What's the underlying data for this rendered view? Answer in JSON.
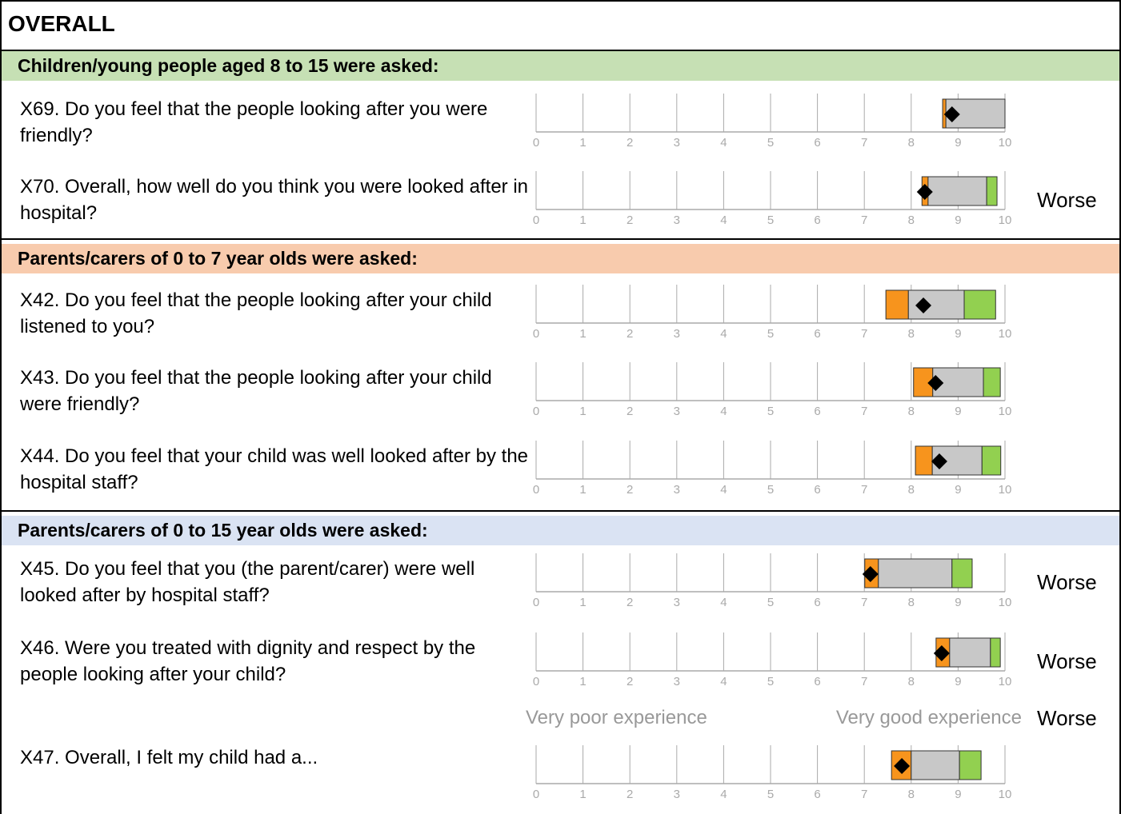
{
  "title": "OVERALL",
  "axis": {
    "xlim": [
      0,
      10
    ],
    "xticks": [
      0,
      1,
      2,
      3,
      4,
      5,
      6,
      7,
      8,
      9,
      10
    ],
    "low_label": "Very poor experience",
    "high_label": "Very good experience",
    "colors": [
      "#f7941d",
      "#c8c8c8",
      "#92d050"
    ]
  },
  "sections": [
    {
      "heading": "Children/young people aged 8 to 15 were asked:",
      "color": "#c6e0b4",
      "items": [
        {
          "question": "X69. Do you feel that the people looking after you were friendly?",
          "score": 8.87,
          "thresholds": [
            8.67,
            8.74,
            10.0,
            10.0
          ]
        },
        {
          "question": "X70. Overall, how well do you think you were looked after in hospital?",
          "score": 8.29,
          "thresholds": [
            8.23,
            8.36,
            9.61,
            9.83
          ],
          "result": "Worse"
        }
      ]
    },
    {
      "heading": "Parents/carers of 0 to 7 year olds were asked:",
      "color": "#f8cbad",
      "items": [
        {
          "question": "X42. Do you feel that the people looking after your child listened to you?",
          "score": 8.26,
          "thresholds": [
            7.46,
            7.94,
            9.13,
            9.8
          ]
        },
        {
          "question": "X43. Do you feel that the people looking after your child were friendly?",
          "score": 8.52,
          "thresholds": [
            8.05,
            8.46,
            9.54,
            9.9
          ]
        },
        {
          "question": "X44. Do you feel that your child was well looked after by the hospital staff?",
          "score": 8.6,
          "thresholds": [
            8.09,
            8.45,
            9.51,
            9.91
          ]
        }
      ]
    },
    {
      "heading": "Parents/carers of 0 to 15 year olds were asked:",
      "color": "#dae3f3",
      "items": [
        {
          "question": "X45. Do you feel that you (the parent/carer) were well looked after by hospital staff?",
          "score": 7.13,
          "thresholds": [
            7.01,
            7.3,
            8.87,
            9.3
          ],
          "result": "Worse"
        },
        {
          "question": "X46. Were you treated with dignity and respect by the people looking after your child?",
          "score": 8.65,
          "thresholds": [
            8.53,
            8.82,
            9.69,
            9.9
          ],
          "result": "Worse"
        },
        {
          "question": "X47. Overall, I felt my child had a...",
          "score": 7.8,
          "thresholds": [
            7.58,
            8.0,
            9.03,
            9.49
          ],
          "result": "Worse"
        }
      ]
    }
  ]
}
